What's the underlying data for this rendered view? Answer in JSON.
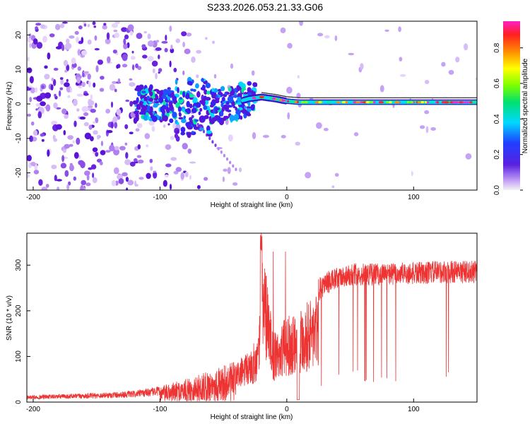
{
  "title": "S233.2026.053.21.33.G06",
  "chart_data": [
    {
      "type": "heatmap",
      "xlabel": "Height of straight line (km)",
      "ylabel": "Frequency (Hz)",
      "xlim": [
        -205,
        150
      ],
      "ylim": [
        -25,
        24
      ],
      "xticks": [
        "-200",
        "-100",
        "0",
        "100"
      ],
      "xtick_values": [
        -200,
        -100,
        0,
        100
      ],
      "yticks": [
        "20",
        "10",
        "0",
        "-10",
        "-20"
      ],
      "ytick_values": [
        20,
        10,
        0,
        -10,
        -20
      ],
      "ridge": {
        "description_values_x": [
          -120,
          -100,
          -80,
          -60,
          -40,
          -30,
          -20,
          -10,
          0,
          10,
          50,
          100,
          150
        ],
        "description_values_y": [
          0,
          0,
          -1,
          -1,
          0.5,
          1.5,
          2,
          1.5,
          0.8,
          0.5,
          0.5,
          0.5,
          0.5
        ]
      },
      "colorbar": {
        "label": "Normalized spectral amplitude",
        "range": [
          0,
          0.95
        ],
        "ticks": [
          "0.0",
          "0.2",
          "0.4",
          "0.6",
          "0.8"
        ],
        "tick_values": [
          0.0,
          0.2,
          0.4,
          0.6,
          0.8
        ]
      }
    },
    {
      "type": "line",
      "xlabel": "Height of straight line (km)",
      "ylabel": "SNR (10 * v/v)",
      "xlim": [
        -205,
        150
      ],
      "ylim": [
        0,
        370
      ],
      "xticks": [
        "-200",
        "-100",
        "0",
        "100"
      ],
      "xtick_values": [
        -200,
        -100,
        0,
        100
      ],
      "yticks": [
        "300",
        "200",
        "100",
        "0"
      ],
      "ytick_values": [
        300,
        200,
        100,
        0
      ],
      "series": [
        {
          "name": "SNR",
          "color": "#ee3333",
          "envelope_x": [
            -205,
            -150,
            -120,
            -100,
            -80,
            -60,
            -40,
            -30,
            -22,
            -20,
            -10,
            0,
            10,
            20,
            30,
            50,
            80,
            100,
            120,
            150
          ],
          "envelope_y": [
            15,
            20,
            25,
            35,
            50,
            70,
            90,
            110,
            150,
            370,
            150,
            190,
            210,
            230,
            260,
            280,
            280,
            282,
            285,
            285
          ]
        }
      ]
    }
  ]
}
